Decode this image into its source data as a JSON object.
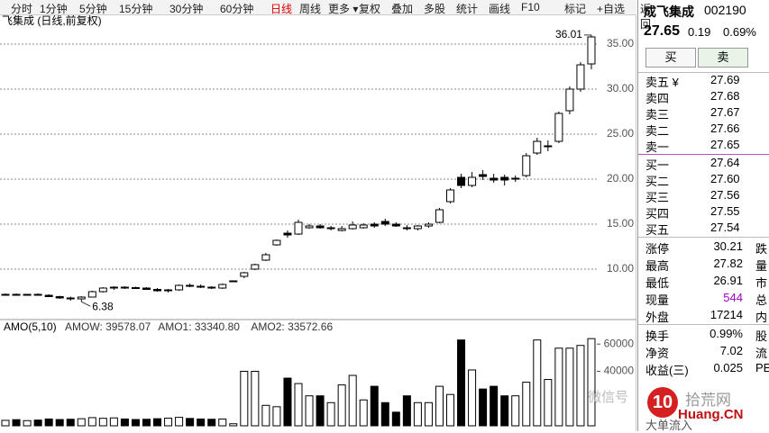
{
  "toolbar": {
    "left": [
      "分时",
      "1分钟",
      "5分钟",
      "15分钟",
      "30分钟",
      "60分钟",
      "日线",
      "周线",
      "更多 ▾"
    ],
    "active": 6,
    "right": [
      "复权",
      "叠加",
      "多股",
      "统计",
      "画线",
      "F10",
      "标记",
      "+自选",
      "返回"
    ]
  },
  "chart_data": [
    {
      "type": "candlestick",
      "title": "飞集成 (日线,前复权)",
      "color": "#000000",
      "grid": true,
      "categories": [
        null,
        null,
        null,
        null,
        null,
        null,
        null,
        null,
        null,
        null,
        null,
        null,
        null,
        null,
        null,
        null,
        null,
        null,
        null,
        null,
        null,
        null,
        null,
        null,
        null,
        null,
        null,
        null,
        null,
        null,
        null,
        null,
        null,
        null,
        null,
        null,
        null,
        null,
        null,
        null,
        null,
        null,
        null,
        null,
        null,
        null,
        null,
        null,
        null,
        null,
        null,
        null,
        null,
        null,
        null
      ],
      "open": [
        7.2,
        7.2,
        7.15,
        7.2,
        7.1,
        6.95,
        6.8,
        6.7,
        6.9,
        7.5,
        7.9,
        8.0,
        7.95,
        7.9,
        7.75,
        7.6,
        7.7,
        8.2,
        8.1,
        8.0,
        7.9,
        8.7,
        9.2,
        10.0,
        11.0,
        12.7,
        14.0,
        13.9,
        14.6,
        14.8,
        14.5,
        14.3,
        14.5,
        14.6,
        15.0,
        15.3,
        15.0,
        14.6,
        14.5,
        14.8,
        15.2,
        17.5,
        20.2,
        19.3,
        20.5,
        20.1,
        20.2,
        20.0,
        20.4,
        22.9,
        23.7,
        24.2,
        27.6,
        30.0,
        32.8
      ],
      "high": [
        7.3,
        7.3,
        7.25,
        7.3,
        7.2,
        7.05,
        6.95,
        7.0,
        7.6,
        8.0,
        8.1,
        8.1,
        8.05,
        8.0,
        7.9,
        7.8,
        8.3,
        8.4,
        8.3,
        8.1,
        8.4,
        8.7,
        9.7,
        10.6,
        11.8,
        13.3,
        14.3,
        15.5,
        15.0,
        15.0,
        14.8,
        14.8,
        15.3,
        15.1,
        15.2,
        15.6,
        15.2,
        14.9,
        14.9,
        15.2,
        16.8,
        19.0,
        20.6,
        20.8,
        21.0,
        20.6,
        20.5,
        20.4,
        22.9,
        24.6,
        24.3,
        27.5,
        30.3,
        33.0,
        36.01
      ],
      "low": [
        7.1,
        7.1,
        7.05,
        7.1,
        6.9,
        6.7,
        6.5,
        6.38,
        6.85,
        7.4,
        7.7,
        7.8,
        7.8,
        7.7,
        7.5,
        7.4,
        7.6,
        8.0,
        7.9,
        7.8,
        7.8,
        8.7,
        9.0,
        9.9,
        10.9,
        12.6,
        13.5,
        13.8,
        14.5,
        14.5,
        14.3,
        14.2,
        14.4,
        14.5,
        14.6,
        14.8,
        14.7,
        14.3,
        14.3,
        14.6,
        15.1,
        17.3,
        19.0,
        19.1,
        19.9,
        19.6,
        19.3,
        19.7,
        20.2,
        22.7,
        23.1,
        24.0,
        27.2,
        29.7,
        32.2
      ],
      "close": [
        7.2,
        7.15,
        7.2,
        7.1,
        6.95,
        6.8,
        6.7,
        6.9,
        7.5,
        7.9,
        8.0,
        7.95,
        7.9,
        7.75,
        7.6,
        7.7,
        8.2,
        8.1,
        8.0,
        7.9,
        8.3,
        8.7,
        9.6,
        10.5,
        11.6,
        13.2,
        13.8,
        15.2,
        14.8,
        14.6,
        14.6,
        14.5,
        14.9,
        14.9,
        14.8,
        15.0,
        14.8,
        14.5,
        14.8,
        15.0,
        16.6,
        18.8,
        19.3,
        20.2,
        20.3,
        19.9,
        19.9,
        20.1,
        22.6,
        24.2,
        23.7,
        27.3,
        30.0,
        32.7,
        35.8
      ],
      "ylim": [
        4.7,
        38.1
      ],
      "yticks": [
        {
          "value": 10,
          "label": "10.00"
        },
        {
          "value": 15,
          "label": "15.00"
        },
        {
          "value": 20,
          "label": "20.00"
        },
        {
          "value": 25,
          "label": "25.00"
        },
        {
          "value": 30,
          "label": "30.00"
        },
        {
          "value": 35,
          "label": "35.00"
        }
      ],
      "annotations": [
        {
          "label": "36.01",
          "index": 54,
          "value": 36.01
        },
        {
          "label": "6.38",
          "index": 7,
          "value": 6.38
        }
      ]
    },
    {
      "type": "bar",
      "title": "AMO(5,10)",
      "color": "#000000",
      "annotations": [
        "AMOW: 39578.07",
        "AMO1: 33340.80",
        "AMO2: 33572.66"
      ],
      "values": [
        4000,
        4500,
        3800,
        4200,
        5000,
        4600,
        4800,
        5200,
        6000,
        5500,
        5800,
        5000,
        4600,
        4800,
        5200,
        5600,
        6200,
        5400,
        5000,
        4800,
        5000,
        1500,
        40000,
        40000,
        15000,
        14000,
        35000,
        31000,
        22000,
        22000,
        17000,
        30000,
        37000,
        19000,
        29000,
        17000,
        10000,
        22000,
        17000,
        17000,
        29000,
        23000,
        63000,
        41000,
        27000,
        29000,
        22000,
        22000,
        32000,
        63000,
        34000,
        57000,
        57000,
        59000,
        64000
      ],
      "ylim": [
        0,
        76000
      ],
      "yticks": [
        40000,
        60000
      ]
    }
  ],
  "sidebar": {
    "name": "成飞集成",
    "code": "002190",
    "price": "27.65",
    "change": "0.19",
    "pct": "0.69%",
    "buy": "买",
    "sell": "卖",
    "asks": [
      [
        "卖五 ¥",
        "27.69"
      ],
      [
        "卖四",
        "27.68"
      ],
      [
        "卖三",
        "27.67"
      ],
      [
        "卖二",
        "27.66"
      ],
      [
        "卖一",
        "27.65"
      ]
    ],
    "bids": [
      [
        "买一",
        "27.64"
      ],
      [
        "买二",
        "27.60"
      ],
      [
        "买三",
        "27.56"
      ],
      [
        "买四",
        "27.55"
      ],
      [
        "买五",
        "27.54"
      ]
    ],
    "stats": [
      [
        "涨停",
        "30.21",
        "跌"
      ],
      [
        "最高",
        "27.82",
        "量"
      ],
      [
        "最低",
        "26.91",
        "市"
      ],
      [
        "现量",
        "544",
        "总"
      ],
      [
        "外盘",
        "17214",
        "内"
      ]
    ],
    "stats2": [
      [
        "换手",
        "0.99%",
        "股"
      ],
      [
        "净资",
        "7.02",
        "流"
      ],
      [
        "收益(三)",
        "0.025",
        "PE"
      ]
    ],
    "flow": "大单流入"
  },
  "watermark": {
    "wechat": "微信号",
    "logo": "10",
    "site": "拾荒网",
    "domain": "Huang.CN"
  }
}
